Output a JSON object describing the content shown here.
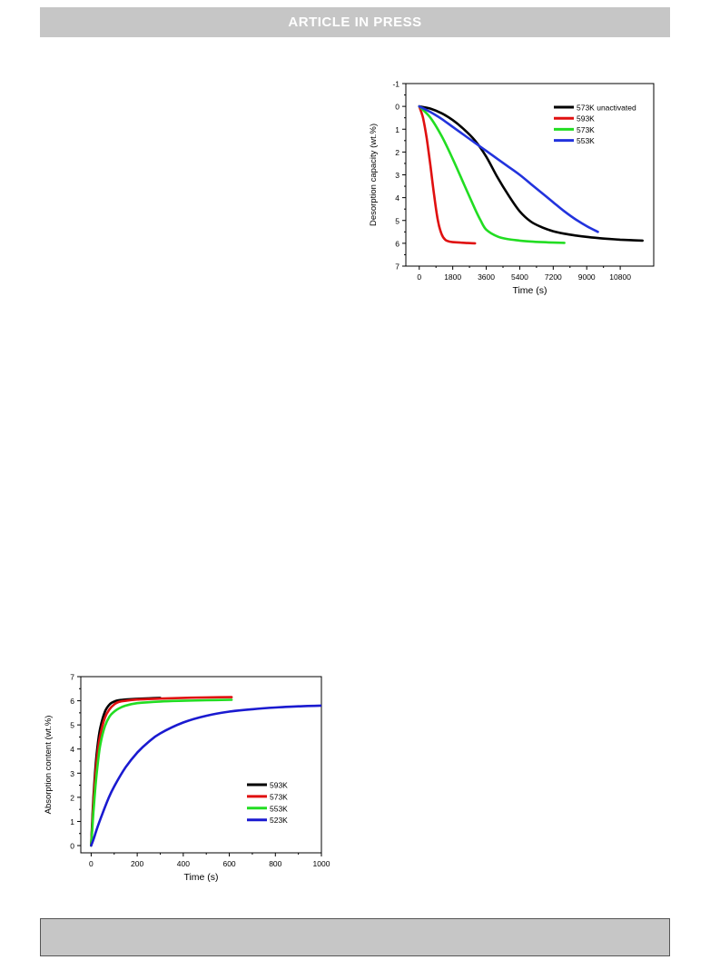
{
  "header": {
    "banner_text": "ARTICLE IN PRESS"
  },
  "chart_data": [
    {
      "type": "line",
      "title": "",
      "xlabel": "Time (s)",
      "ylabel": "Desorption capacity (wt.%)",
      "xlim": [
        -720,
        12600
      ],
      "ylim": [
        -1,
        7
      ],
      "y_inverted": true,
      "x_ticks": [
        0,
        1800,
        3600,
        5400,
        7200,
        9000,
        10800
      ],
      "x_tick_labels": [
        "0",
        "1800",
        "3600",
        "5400",
        "7200",
        "9000",
        "10800"
      ],
      "y_ticks": [
        -1,
        0,
        1,
        2,
        3,
        4,
        5,
        6,
        7
      ],
      "y_tick_labels": [
        "-1",
        "0",
        "1",
        "2",
        "3",
        "4",
        "5",
        "6",
        "7"
      ],
      "legend_position": "top-right",
      "grid": false,
      "series": [
        {
          "name": "573K unactivated",
          "color": "#000000",
          "x": [
            0,
            600,
            1200,
            1800,
            2400,
            3000,
            3600,
            4200,
            4800,
            5400,
            6000,
            6600,
            7200,
            7800,
            8400,
            9000,
            9600,
            10200,
            10800,
            11400,
            12000
          ],
          "y": [
            0,
            0.1,
            0.3,
            0.6,
            1.0,
            1.5,
            2.2,
            3.1,
            3.9,
            4.6,
            5.05,
            5.3,
            5.47,
            5.58,
            5.66,
            5.72,
            5.77,
            5.81,
            5.84,
            5.86,
            5.88
          ]
        },
        {
          "name": "593K",
          "color": "#e01010",
          "x": [
            0,
            200,
            400,
            600,
            800,
            1000,
            1200,
            1400,
            1600,
            1800,
            2200,
            2600,
            3000
          ],
          "y": [
            0,
            0.5,
            1.4,
            2.6,
            3.9,
            5.0,
            5.6,
            5.85,
            5.92,
            5.95,
            5.97,
            5.99,
            6.0
          ]
        },
        {
          "name": "573K",
          "color": "#22dd22",
          "x": [
            0,
            600,
            1200,
            1800,
            2400,
            3000,
            3300,
            3600,
            4200,
            4800,
            5400,
            6000,
            6600,
            7200,
            7800
          ],
          "y": [
            0,
            0.5,
            1.3,
            2.3,
            3.4,
            4.5,
            5.0,
            5.4,
            5.7,
            5.82,
            5.88,
            5.92,
            5.95,
            5.97,
            5.98
          ]
        },
        {
          "name": "553K",
          "color": "#2233dd",
          "x": [
            0,
            600,
            1200,
            1800,
            2400,
            3000,
            3600,
            4200,
            4800,
            5400,
            6000,
            6600,
            7200,
            7800,
            8400,
            9000,
            9600
          ],
          "y": [
            0,
            0.25,
            0.55,
            0.9,
            1.25,
            1.6,
            1.95,
            2.3,
            2.65,
            3.0,
            3.4,
            3.8,
            4.2,
            4.6,
            4.95,
            5.25,
            5.5
          ]
        }
      ]
    },
    {
      "type": "line",
      "title": "",
      "xlabel": "Time (s)",
      "ylabel": "Absorption content (wt.%)",
      "xlim": [
        -45,
        1000
      ],
      "ylim": [
        -0.3,
        7
      ],
      "x_ticks": [
        0,
        200,
        400,
        600,
        800,
        1000
      ],
      "x_tick_labels": [
        "0",
        "200",
        "400",
        "600",
        "800",
        "1000"
      ],
      "y_ticks": [
        0,
        1,
        2,
        3,
        4,
        5,
        6,
        7
      ],
      "y_tick_labels": [
        "0",
        "1",
        "2",
        "3",
        "4",
        "5",
        "6",
        "7"
      ],
      "legend_position": "bottom-right",
      "grid": false,
      "series": [
        {
          "name": "593K",
          "color": "#000000",
          "x": [
            0,
            5,
            10,
            20,
            30,
            40,
            60,
            80,
            100,
            120,
            150,
            200,
            250,
            300
          ],
          "y": [
            0,
            1.1,
            2.0,
            3.4,
            4.3,
            4.9,
            5.55,
            5.85,
            5.97,
            6.02,
            6.05,
            6.08,
            6.1,
            6.12
          ]
        },
        {
          "name": "573K",
          "color": "#e01010",
          "x": [
            0,
            5,
            10,
            20,
            30,
            40,
            60,
            80,
            100,
            120,
            150,
            200,
            300,
            400,
            500,
            610
          ],
          "y": [
            0,
            0.9,
            1.8,
            3.1,
            4.0,
            4.6,
            5.3,
            5.65,
            5.85,
            5.95,
            6.0,
            6.05,
            6.09,
            6.12,
            6.14,
            6.15
          ]
        },
        {
          "name": "553K",
          "color": "#22dd22",
          "x": [
            0,
            5,
            10,
            20,
            30,
            40,
            60,
            80,
            100,
            120,
            150,
            200,
            300,
            400,
            500,
            610
          ],
          "y": [
            0,
            0.7,
            1.4,
            2.6,
            3.5,
            4.2,
            4.95,
            5.35,
            5.55,
            5.68,
            5.8,
            5.9,
            5.97,
            6.0,
            6.02,
            6.04
          ]
        },
        {
          "name": "523K",
          "color": "#1a1ad0",
          "x": [
            0,
            10,
            25,
            50,
            75,
            100,
            150,
            200,
            250,
            300,
            400,
            500,
            600,
            700,
            800,
            900,
            1000
          ],
          "y": [
            0,
            0.25,
            0.7,
            1.35,
            1.95,
            2.45,
            3.25,
            3.85,
            4.3,
            4.65,
            5.1,
            5.38,
            5.55,
            5.65,
            5.72,
            5.77,
            5.8
          ]
        }
      ]
    }
  ]
}
